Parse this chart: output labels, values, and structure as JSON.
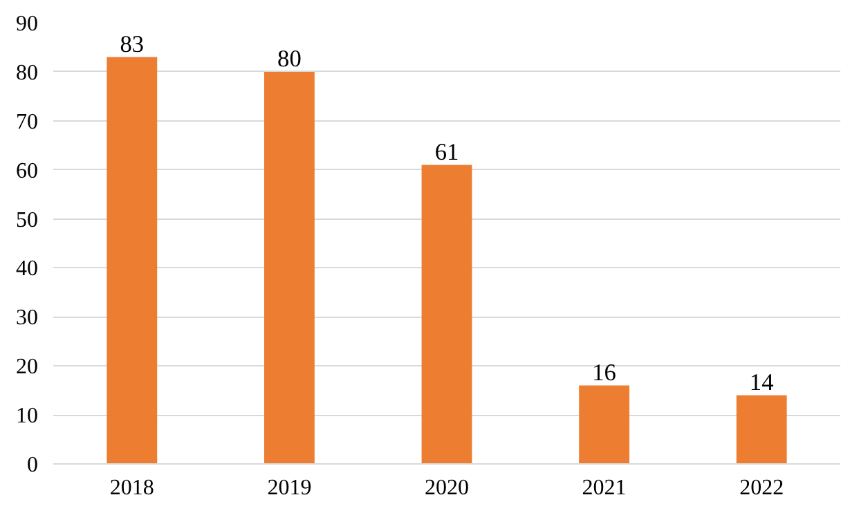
{
  "chart_data": {
    "type": "bar",
    "categories": [
      "2018",
      "2019",
      "2020",
      "2021",
      "2022"
    ],
    "values": [
      83,
      80,
      61,
      16,
      14
    ],
    "color": "#ed7d31",
    "ylim": [
      0,
      90
    ],
    "yticks": [
      0,
      10,
      20,
      30,
      40,
      50,
      60,
      70,
      80,
      90
    ],
    "grid": "y",
    "data_labels": true
  }
}
